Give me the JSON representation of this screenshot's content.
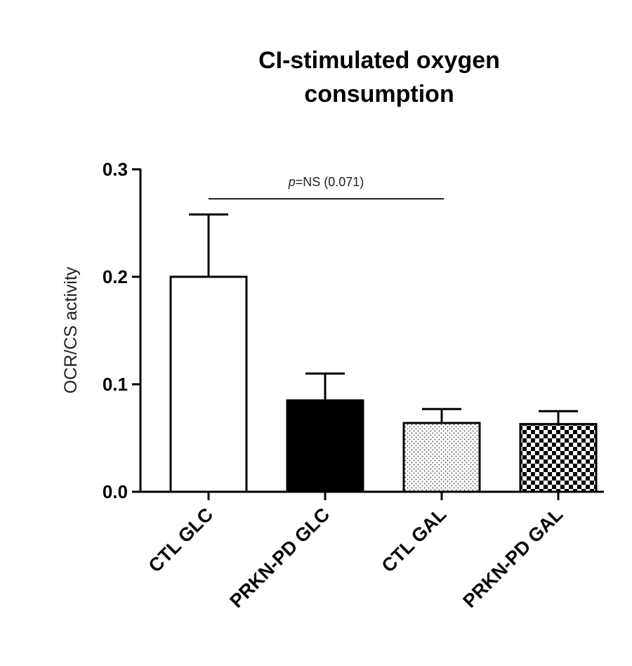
{
  "chart_data": {
    "type": "bar",
    "title_lines": [
      "CI-stimulated oxygen",
      "consumption"
    ],
    "ylabel": "OCR/CS activity",
    "xlabel": "",
    "ylim": [
      0,
      0.3
    ],
    "yticks": [
      0.0,
      0.1,
      0.2,
      0.3
    ],
    "ytick_labels": [
      "0.0",
      "0.1",
      "0.2",
      "0.3"
    ],
    "categories": [
      "CTL GLC",
      "PRKN-PD GLC",
      "CTL GAL",
      "PRKN-PD GAL"
    ],
    "values": [
      0.2,
      0.085,
      0.064,
      0.063
    ],
    "error_plus": [
      0.058,
      0.025,
      0.013,
      0.012
    ],
    "fills": [
      "white",
      "black",
      "dotted",
      "checkered"
    ],
    "significance": {
      "from_category": "CTL GLC",
      "to_category": "CTL GAL",
      "p_symbol": "p",
      "text": "=NS (0.071)"
    },
    "grid": false,
    "legend": "none"
  }
}
